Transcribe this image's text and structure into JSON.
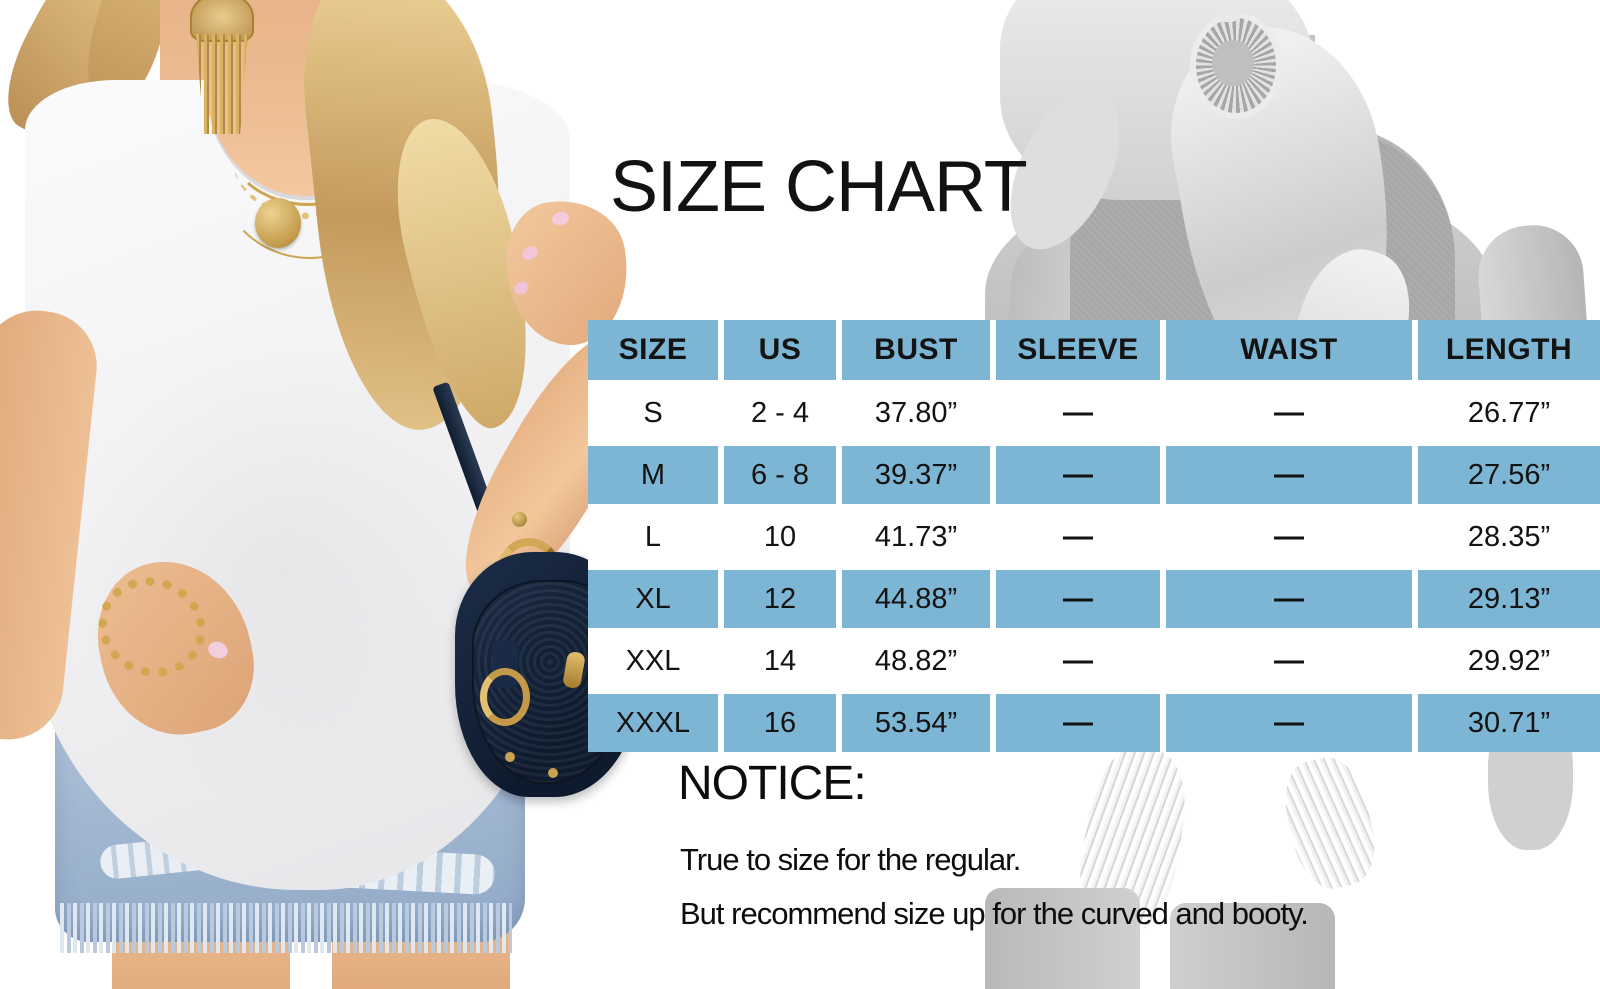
{
  "page": {
    "title": "SIZE CHART"
  },
  "table": {
    "columns": [
      "SIZE",
      "US",
      "BUST",
      "SLEEVE",
      "WAIST",
      "LENGTH"
    ],
    "rows": [
      [
        "S",
        "2 - 4",
        "37.80”",
        "—",
        "—",
        "26.77”"
      ],
      [
        "M",
        "6 - 8",
        "39.37”",
        "—",
        "—",
        "27.56”"
      ],
      [
        "L",
        "10",
        "41.73”",
        "—",
        "—",
        "28.35”"
      ],
      [
        "XL",
        "12",
        "44.88”",
        "—",
        "—",
        "29.13”"
      ],
      [
        "XXL",
        "14",
        "48.82”",
        "—",
        "—",
        "29.92”"
      ],
      [
        "XXXL",
        "16",
        "53.54”",
        "—",
        "—",
        "30.71”"
      ]
    ],
    "na_symbol": "—"
  },
  "notice": {
    "heading": "NOTICE:",
    "lines": [
      "True to size for the regular.",
      "But recommend size up for the curved and booty."
    ]
  },
  "colors": {
    "table_blue": "#7db6d4",
    "table_text": "#131313",
    "background": "#ffffff"
  },
  "chart_data": {
    "type": "table",
    "title": "SIZE CHART",
    "columns": [
      "SIZE",
      "US",
      "BUST",
      "SLEEVE",
      "WAIST",
      "LENGTH"
    ],
    "rows": [
      [
        "S",
        "2 - 4",
        "37.80”",
        "—",
        "—",
        "26.77”"
      ],
      [
        "M",
        "6 - 8",
        "39.37”",
        "—",
        "—",
        "27.56”"
      ],
      [
        "L",
        "10",
        "41.73”",
        "—",
        "—",
        "28.35”"
      ],
      [
        "XL",
        "12",
        "44.88”",
        "—",
        "—",
        "29.13”"
      ],
      [
        "XXL",
        "14",
        "48.82”",
        "—",
        "—",
        "29.92”"
      ],
      [
        "XXXL",
        "16",
        "53.54”",
        "—",
        "—",
        "30.71”"
      ]
    ],
    "notes": [
      "True to size for the regular.",
      "But recommend size up for the curved and booty."
    ]
  }
}
